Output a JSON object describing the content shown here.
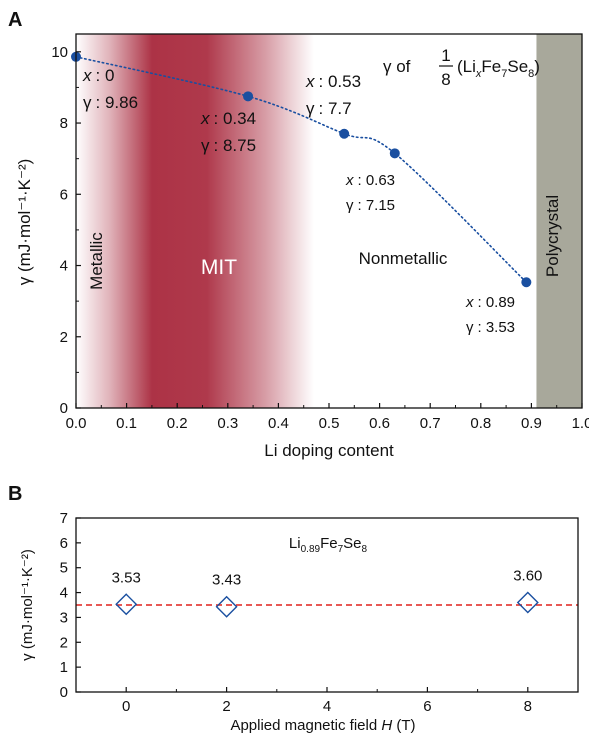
{
  "chart_data": [
    {
      "panel": "A",
      "type": "scatter",
      "xlabel": "Li doping content",
      "ylabel": "γ (mJ·mol⁻¹·K⁻²)",
      "xlim": [
        0,
        1.0
      ],
      "ylim": [
        0,
        10.5
      ],
      "xticks": [
        "0.0",
        "0.1",
        "0.2",
        "0.3",
        "0.4",
        "0.5",
        "0.6",
        "0.7",
        "0.8",
        "0.9",
        "1.0"
      ],
      "yticks": [
        "0",
        "2",
        "4",
        "6",
        "8",
        "10"
      ],
      "legend_title": {
        "prefix": "γ of",
        "frac_num": "1",
        "frac_den": "8",
        "formula_open": "(Li",
        "sub_x": "x",
        "fe": "Fe",
        "sub_7": "7",
        "se": "Se",
        "sub_8": "8",
        "formula_close": ")"
      },
      "series": [
        {
          "x": [
            0.0,
            0.34,
            0.53,
            0.63,
            0.89
          ],
          "y": [
            9.86,
            8.75,
            7.7,
            7.15,
            3.53
          ],
          "color": "#1a4fa0",
          "line_style": "dotted"
        }
      ],
      "point_labels": [
        {
          "x_text": "x",
          "x_val": ": 0",
          "g_text": "γ",
          "g_val": ": 9.86"
        },
        {
          "x_text": "x",
          "x_val": ": 0.34",
          "g_text": "γ",
          "g_val": ": 8.75"
        },
        {
          "x_text": "x",
          "x_val": ": 0.53",
          "g_text": "γ",
          "g_val": ": 7.7"
        },
        {
          "x_text": "x",
          "x_val": ": 0.63",
          "g_text": "γ",
          "g_val": ": 7.15"
        },
        {
          "x_text": "x",
          "x_val": ": 0.89",
          "g_text": "γ",
          "g_val": ": 3.53"
        }
      ],
      "regions": {
        "metallic": "Metallic",
        "mit": "MIT",
        "nonmetallic": "Nonmetallic",
        "polycrystal": "Polycrystal"
      },
      "mit_range": [
        0.0,
        0.47
      ],
      "polycrystal_range": [
        0.91,
        1.0
      ],
      "colors": {
        "mit": "#a8283c",
        "polycrystal": "#a8a89b",
        "points": "#1a4fa0"
      }
    },
    {
      "panel": "B",
      "type": "scatter",
      "xlabel_main": "Applied magnetic field ",
      "xlabel_var": "H",
      "xlabel_unit": " (T)",
      "ylabel": "γ (mJ·mol⁻¹·K⁻²)",
      "xlim": [
        -1,
        9
      ],
      "ylim": [
        0,
        7
      ],
      "xticks": [
        "0",
        "2",
        "4",
        "6",
        "8"
      ],
      "yticks": [
        "0",
        "1",
        "2",
        "3",
        "4",
        "5",
        "6",
        "7"
      ],
      "title_parts": {
        "li": "Li",
        "sub1": "0.89",
        "fe": "Fe",
        "sub2": "7",
        "se": "Se",
        "sub3": "8"
      },
      "x": [
        0,
        2,
        8
      ],
      "y": [
        3.53,
        3.43,
        3.6
      ],
      "labels": [
        "3.53",
        "3.43",
        "3.60"
      ],
      "reference_line": 3.5,
      "colors": {
        "marker": "#1a4fa0",
        "reference": "#e0201c"
      }
    }
  ],
  "panel_labels": [
    "A",
    "B"
  ]
}
